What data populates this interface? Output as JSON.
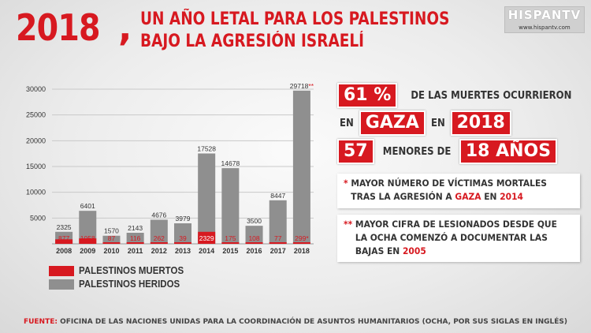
{
  "header": {
    "year": "2018",
    "comma": ",",
    "line1": "UN AÑO LETAL PARA LOS PALESTINOS",
    "line2": "BAJO LA AGRESIÓN ISRAELÍ"
  },
  "logo": {
    "name": "HISPANTV",
    "url": "www.hispantv.com"
  },
  "colors": {
    "red": "#d71920",
    "gray": "#909090",
    "text": "#333333"
  },
  "chart_data": {
    "type": "bar",
    "categories": [
      "2008",
      "2009",
      "2010",
      "2011",
      "2012",
      "2013",
      "2014",
      "2015",
      "2016",
      "2017",
      "2018"
    ],
    "series": [
      {
        "name": "PALESTINOS MUERTOS",
        "values": [
          877,
          1058,
          87,
          116,
          262,
          39,
          2329,
          175,
          108,
          77,
          299
        ],
        "labels": [
          "877",
          "1058",
          "87",
          "116",
          "262",
          "39",
          "2329",
          "175",
          "108",
          "77",
          "299*"
        ]
      },
      {
        "name": "PALESTINOS HERIDOS",
        "values": [
          2325,
          6401,
          1570,
          2143,
          4676,
          3979,
          17528,
          14678,
          3500,
          8447,
          29718
        ],
        "labels": [
          "2325",
          "6401",
          "1570",
          "2143",
          "4676",
          "3979",
          "17528",
          "14678",
          "3500",
          "8447",
          "29718**"
        ]
      }
    ],
    "yticks": [
      5000,
      10000,
      15000,
      20000,
      25000,
      30000
    ],
    "ylim": [
      0,
      30000
    ],
    "grid": true,
    "legend_position": "bottom-left"
  },
  "facts": {
    "pct": "61 %",
    "pct_text": "DE LAS MUERTES OCURRIERON",
    "en": "EN",
    "gaza": "GAZA",
    "en2": "EN",
    "year": "2018",
    "num": "57",
    "menores": "MENORES DE",
    "age": "18 AÑOS"
  },
  "notes": {
    "n1_star": "*",
    "n1_l1": "MAYOR NÚMERO DE VÍCTIMAS MORTALES",
    "n1_l2a": "TRAS LA AGRESIÓN A",
    "n1_gaza": "GAZA",
    "n1_l2b": "EN",
    "n1_year": "2014",
    "n2_star": "**",
    "n2_l1": "MAYOR CIFRA DE LESIONADOS DESDE QUE",
    "n2_l2": "LA OCHA COMENZÓ A DOCUMENTAR LAS",
    "n2_l3": "BAJAS EN",
    "n2_year": "2005"
  },
  "footer": {
    "label": "FUENTE:",
    "text": "OFICINA DE LAS NACIONES UNIDAS PARA LA COORDINACIÓN DE ASUNTOS HUMANITARIOS (OCHA, POR SUS SIGLAS EN INGLÉS)"
  }
}
